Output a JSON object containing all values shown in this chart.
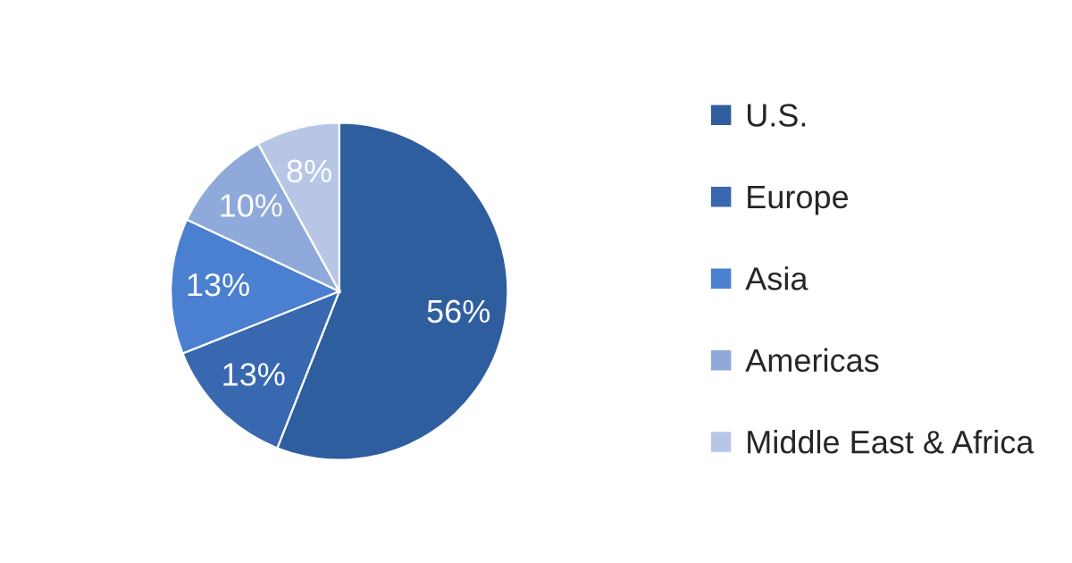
{
  "chart_data": {
    "type": "pie",
    "categories": [
      "U.S.",
      "Europe",
      "Asia",
      "Americas",
      "Middle East & Africa"
    ],
    "values": [
      56,
      13,
      13,
      10,
      8
    ],
    "colors": [
      "#2f5e9e",
      "#3868b0",
      "#4a80cf",
      "#8fa9da",
      "#b8c6e6"
    ],
    "value_labels": [
      "56%",
      "13%",
      "13%",
      "10%",
      "8%"
    ],
    "legend": "right"
  }
}
